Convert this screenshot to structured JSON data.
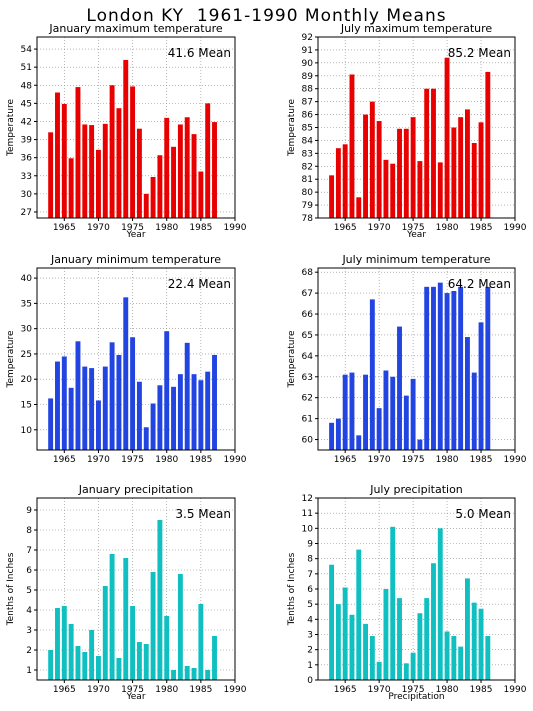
{
  "page": {
    "title": "London KY  1961-1990 Monthly Means"
  },
  "colors": {
    "red": "#e80000",
    "blue": "#2244e0",
    "teal": "#10c0c0",
    "grid": "#888888"
  },
  "chart_data": [
    {
      "type": "bar",
      "title": "January maximum temperature",
      "mean": "41.6 Mean",
      "xlabel": "Year",
      "ylabel": "Temperature",
      "color": "red",
      "xlim": [
        1961,
        1990
      ],
      "ylim": [
        26,
        56
      ],
      "yticks": [
        27,
        30,
        33,
        36,
        39,
        42,
        45,
        48,
        51,
        54
      ],
      "xticks": [
        1965,
        1970,
        1975,
        1980,
        1985,
        1990
      ],
      "years": [
        1963,
        1964,
        1965,
        1966,
        1967,
        1968,
        1969,
        1970,
        1971,
        1972,
        1973,
        1974,
        1975,
        1976,
        1977,
        1978,
        1979,
        1980,
        1981,
        1982,
        1983,
        1984,
        1985,
        1986,
        1987
      ],
      "values": [
        40.2,
        46.8,
        44.9,
        35.9,
        47.7,
        41.5,
        41.4,
        37.3,
        41.6,
        48.0,
        44.2,
        52.2,
        47.8,
        40.8,
        30.0,
        32.8,
        36.4,
        42.6,
        37.8,
        41.5,
        42.7,
        39.9,
        33.7,
        45.0,
        41.9
      ]
    },
    {
      "type": "bar",
      "title": "July maximum temperature",
      "mean": "85.2 Mean",
      "xlabel": "Year",
      "ylabel": "Temperature",
      "color": "red",
      "xlim": [
        1961,
        1990
      ],
      "ylim": [
        78,
        92
      ],
      "yticks": [
        78,
        79,
        80,
        81,
        82,
        83,
        84,
        85,
        86,
        87,
        88,
        89,
        90,
        91,
        92
      ],
      "xticks": [
        1965,
        1970,
        1975,
        1980,
        1985,
        1990
      ],
      "years": [
        1963,
        1964,
        1965,
        1966,
        1967,
        1968,
        1969,
        1970,
        1971,
        1972,
        1973,
        1974,
        1975,
        1976,
        1977,
        1978,
        1979,
        1980,
        1981,
        1982,
        1983,
        1984,
        1985,
        1986
      ],
      "values": [
        81.3,
        83.4,
        83.7,
        89.1,
        79.6,
        86.0,
        87.0,
        85.5,
        82.5,
        82.2,
        84.9,
        84.9,
        85.8,
        82.4,
        88.0,
        88.0,
        82.3,
        90.4,
        85.0,
        85.8,
        86.4,
        83.8,
        85.4,
        89.3
      ]
    },
    {
      "type": "bar",
      "title": "January minimum temperature",
      "mean": "22.4 Mean",
      "xlabel": "",
      "ylabel": "Temperature",
      "color": "blue",
      "xlim": [
        1961,
        1990
      ],
      "ylim": [
        6,
        42
      ],
      "yticks": [
        10,
        15,
        20,
        25,
        30,
        35,
        40
      ],
      "xticks": [
        1965,
        1970,
        1975,
        1980,
        1985,
        1990
      ],
      "years": [
        1963,
        1964,
        1965,
        1966,
        1967,
        1968,
        1969,
        1970,
        1971,
        1972,
        1973,
        1974,
        1975,
        1976,
        1977,
        1978,
        1979,
        1980,
        1981,
        1982,
        1983,
        1984,
        1985,
        1986,
        1987
      ],
      "values": [
        16.2,
        23.5,
        24.5,
        18.3,
        27.5,
        22.5,
        22.2,
        15.8,
        22.5,
        27.3,
        24.8,
        36.2,
        28.3,
        19.5,
        10.5,
        15.2,
        18.8,
        29.5,
        18.5,
        21.0,
        27.2,
        21.0,
        19.8,
        21.5,
        24.8
      ]
    },
    {
      "type": "bar",
      "title": "July minimum temperature",
      "mean": "64.2 Mean",
      "xlabel": "",
      "ylabel": "Temperature",
      "color": "blue",
      "xlim": [
        1961,
        1990
      ],
      "ylim": [
        59.5,
        68.2
      ],
      "yticks": [
        60,
        61,
        62,
        63,
        64,
        65,
        66,
        67,
        68
      ],
      "xticks": [
        1965,
        1970,
        1975,
        1980,
        1985,
        1990
      ],
      "years": [
        1963,
        1964,
        1965,
        1966,
        1967,
        1968,
        1969,
        1970,
        1971,
        1972,
        1973,
        1974,
        1975,
        1976,
        1977,
        1978,
        1979,
        1980,
        1981,
        1982,
        1983,
        1984,
        1985,
        1986
      ],
      "values": [
        60.8,
        61.0,
        63.1,
        63.2,
        60.2,
        63.1,
        66.7,
        61.5,
        63.3,
        63.0,
        65.4,
        62.1,
        62.9,
        60.0,
        67.3,
        67.3,
        67.5,
        67.0,
        67.1,
        67.3,
        64.9,
        63.2,
        65.6,
        67.3
      ]
    },
    {
      "type": "bar",
      "title": "January precipitation",
      "mean": "3.5 Mean",
      "xlabel": "Year",
      "ylabel": "Tenths of Inches",
      "color": "teal",
      "xlim": [
        1961,
        1990
      ],
      "ylim": [
        0.5,
        9.6
      ],
      "yticks": [
        1,
        2,
        3,
        4,
        5,
        6,
        7,
        8,
        9
      ],
      "xticks": [
        1965,
        1970,
        1975,
        1980,
        1985,
        1990
      ],
      "years": [
        1963,
        1964,
        1965,
        1966,
        1967,
        1968,
        1969,
        1970,
        1971,
        1972,
        1973,
        1974,
        1975,
        1976,
        1977,
        1978,
        1979,
        1980,
        1981,
        1982,
        1983,
        1984,
        1985,
        1986,
        1987
      ],
      "values": [
        2.0,
        4.1,
        4.2,
        3.3,
        2.2,
        1.9,
        3.0,
        1.7,
        5.2,
        6.8,
        1.6,
        6.6,
        4.2,
        2.4,
        2.3,
        5.9,
        8.5,
        3.7,
        1.0,
        5.8,
        1.2,
        1.1,
        4.3,
        1.0,
        2.7
      ]
    },
    {
      "type": "bar",
      "title": "July precipitation",
      "mean": "5.0 Mean",
      "xlabel": "Precipitation",
      "ylabel": "Tenths of Inches",
      "color": "teal",
      "xlim": [
        1961,
        1990
      ],
      "ylim": [
        0,
        12
      ],
      "yticks": [
        0,
        1,
        2,
        3,
        4,
        5,
        6,
        7,
        8,
        9,
        10,
        11,
        12
      ],
      "xticks": [
        1965,
        1970,
        1975,
        1980,
        1985,
        1990
      ],
      "years": [
        1963,
        1964,
        1965,
        1966,
        1967,
        1968,
        1969,
        1970,
        1971,
        1972,
        1973,
        1974,
        1975,
        1976,
        1977,
        1978,
        1979,
        1980,
        1981,
        1982,
        1983,
        1984,
        1985,
        1986
      ],
      "values": [
        7.6,
        5.0,
        6.1,
        4.3,
        8.6,
        3.7,
        2.9,
        1.2,
        6.0,
        10.1,
        5.4,
        1.1,
        1.8,
        4.4,
        5.4,
        7.7,
        10.0,
        3.2,
        2.9,
        2.2,
        6.7,
        5.1,
        4.7,
        2.9
      ]
    }
  ]
}
